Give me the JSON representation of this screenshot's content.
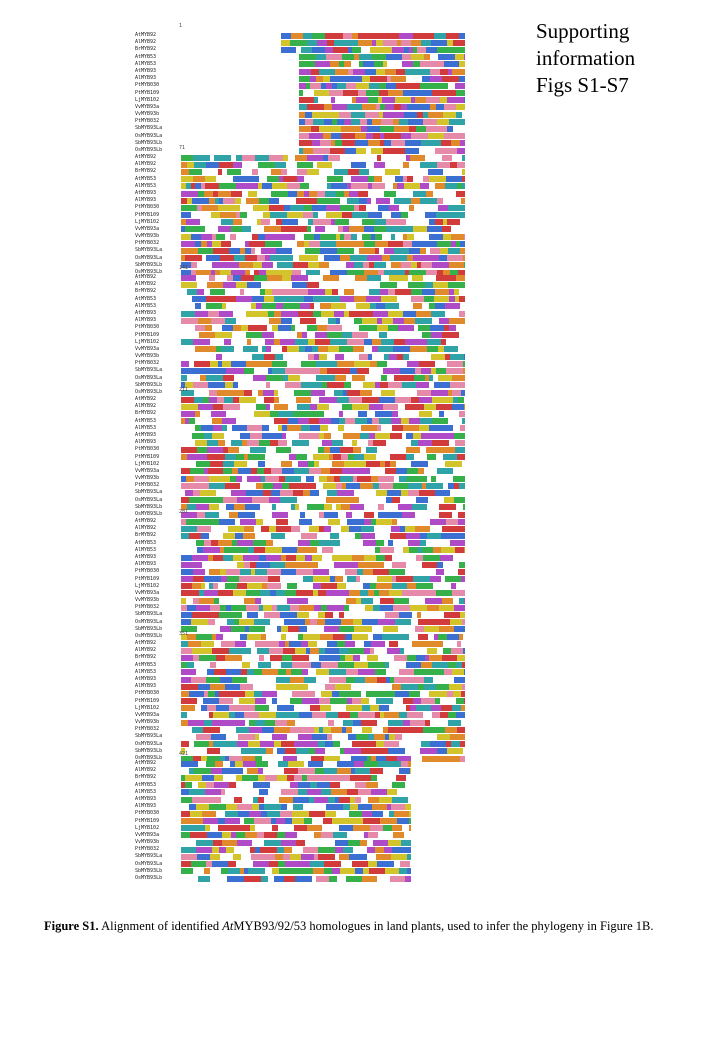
{
  "heading": {
    "line1": "Supporting",
    "line2": "information",
    "line3": "Figs S1-S7"
  },
  "alignment": {
    "sequence_names": [
      "AtMYB92",
      "AlMYB92",
      "BrMYB92",
      "AtMYB53",
      "AlMYB53",
      "AtMYB93",
      "AlMYB93",
      "PtMYB030",
      "PtMYB109",
      "LjMYB102",
      "VvMYB93a",
      "VvMYB93b",
      "PtMYB032",
      "SbMYB93La",
      "OsMYB93La",
      "SbMYB93Lb",
      "OsMYB93Lb"
    ],
    "block_starts": [
      "1",
      "71",
      "141",
      "211",
      "281",
      "351",
      "421"
    ],
    "residue_colors": {
      "hydrophobic": "#3b6fd1",
      "positive": "#d13b3b",
      "negative": "#b04bc8",
      "polar": "#35b04a",
      "glycine": "#e08a2c",
      "proline": "#d4c42b",
      "aromatic": "#2fa3a8",
      "cysteine": "#e58aa8",
      "gap": "#ffffff"
    }
  },
  "caption": {
    "label": "Figure S1.",
    "text_before": " Alignment of identified ",
    "gene": "At",
    "gene_rest": "MYB93/92/53",
    "text_after": " homologues in land plants, used to infer the phylogeny in Figure 1B."
  }
}
